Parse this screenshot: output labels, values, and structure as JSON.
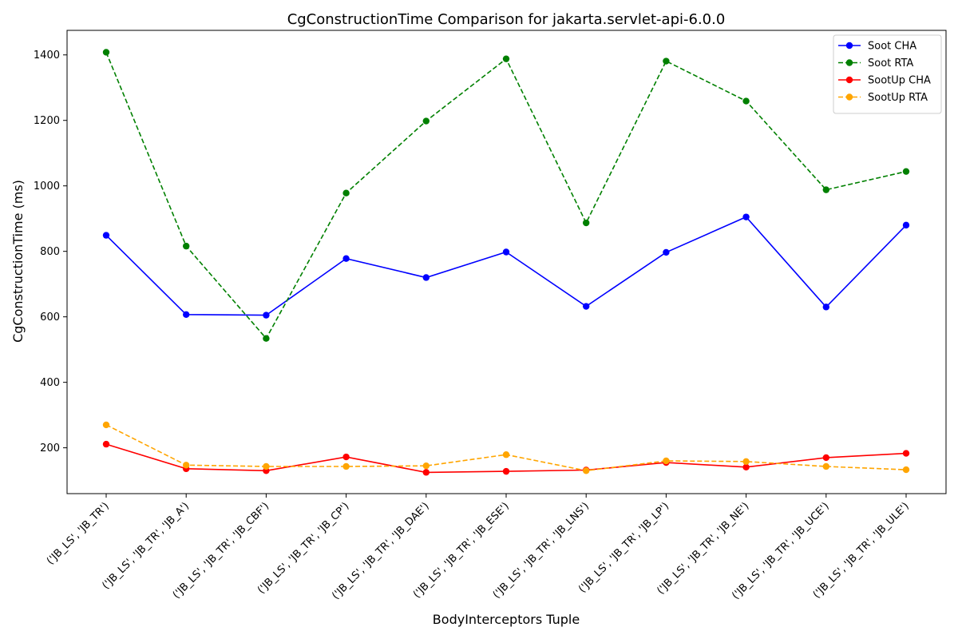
{
  "chart_data": {
    "type": "line",
    "title": "CgConstructionTime Comparison for jakarta.servlet-api-6.0.0",
    "xlabel": "BodyInterceptors Tuple",
    "ylabel": "CgConstructionTime (ms)",
    "categories": [
      "('JB_LS', 'JB_TR')",
      "('JB_LS', 'JB_TR', 'JB_A')",
      "('JB_LS', 'JB_TR', 'JB_CBF')",
      "('JB_LS', 'JB_TR', 'JB_CP')",
      "('JB_LS', 'JB_TR', 'JB_DAE')",
      "('JB_LS', 'JB_TR', 'JB_ESE')",
      "('JB_LS', 'JB_TR', 'JB_LNS')",
      "('JB_LS', 'JB_TR', 'JB_LP')",
      "('JB_LS', 'JB_TR', 'JB_NE')",
      "('JB_LS', 'JB_TR', 'JB_UCE')",
      "('JB_LS', 'JB_TR', 'JB_ULE')"
    ],
    "ylim": [
      60,
      1475
    ],
    "yticks": [
      200,
      400,
      600,
      800,
      1000,
      1200,
      1400
    ],
    "grid": false,
    "legend_position": "top-right",
    "series": [
      {
        "name": "Soot CHA",
        "color": "#0000ff",
        "style": "solid",
        "values": [
          849,
          607,
          605,
          778,
          720,
          798,
          632,
          797,
          905,
          630,
          880
        ]
      },
      {
        "name": "Soot RTA",
        "color": "#008000",
        "style": "dashed",
        "values": [
          1408,
          816,
          534,
          978,
          1198,
          1388,
          887,
          1381,
          1259,
          988,
          1044
        ]
      },
      {
        "name": "SootUp CHA",
        "color": "#ff0000",
        "style": "solid",
        "values": [
          211,
          136,
          130,
          172,
          125,
          128,
          132,
          155,
          141,
          170,
          183
        ]
      },
      {
        "name": "SootUp RTA",
        "color": "#ffa500",
        "style": "dashed",
        "values": [
          270,
          147,
          143,
          143,
          145,
          179,
          130,
          160,
          158,
          143,
          133
        ]
      }
    ]
  }
}
